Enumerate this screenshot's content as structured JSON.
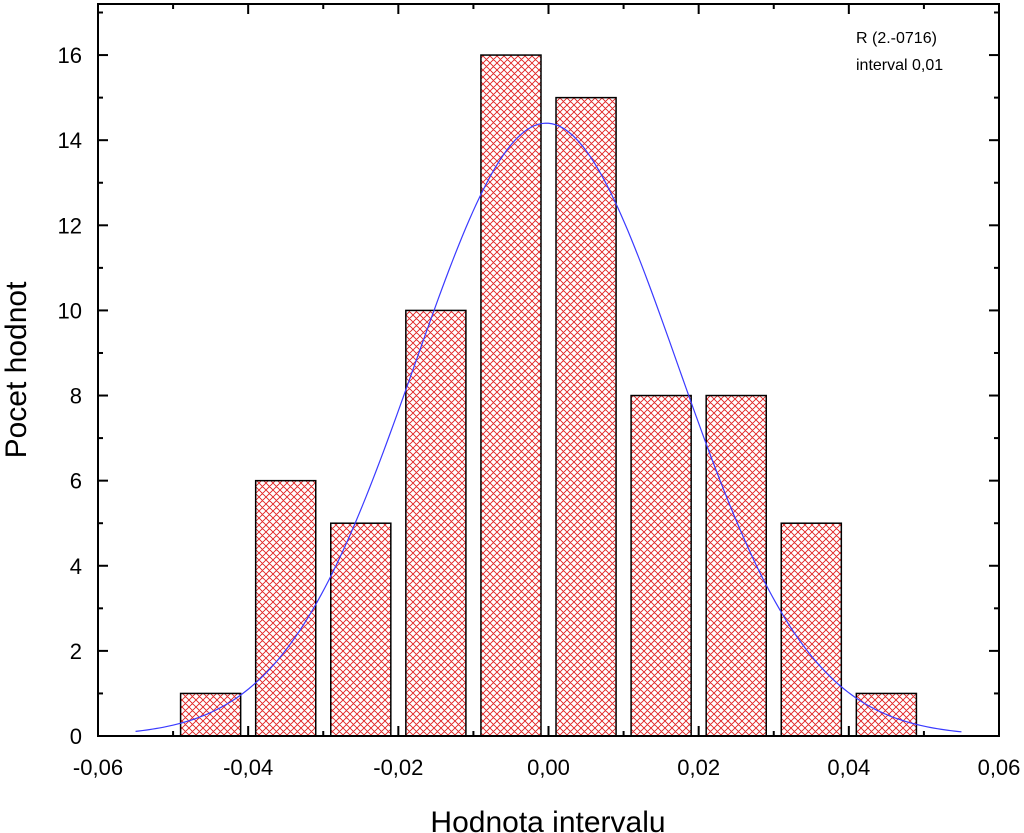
{
  "chart_data": {
    "type": "bar",
    "subtype": "histogram-with-fitted-curve",
    "xlabel": "Hodnota intervalu",
    "ylabel": "Pocet hodnot",
    "xlim": [
      -0.06,
      0.06
    ],
    "ylim": [
      0,
      17.2
    ],
    "x_ticks": [
      -0.06,
      -0.04,
      -0.02,
      0.0,
      0.02,
      0.04,
      0.06
    ],
    "x_tick_labels": [
      "-0,06",
      "-0,04",
      "-0,02",
      "0,00",
      "0,02",
      "0,04",
      "0,06"
    ],
    "y_ticks": [
      0,
      2,
      4,
      6,
      8,
      10,
      12,
      14,
      16
    ],
    "y_tick_labels": [
      "0",
      "2",
      "4",
      "6",
      "8",
      "10",
      "12",
      "14",
      "16"
    ],
    "bin_width": 0.01,
    "bar_width": 0.008,
    "bins": [
      {
        "center": -0.045,
        "count": 1
      },
      {
        "center": -0.035,
        "count": 6
      },
      {
        "center": -0.025,
        "count": 5
      },
      {
        "center": -0.015,
        "count": 10
      },
      {
        "center": -0.005,
        "count": 16
      },
      {
        "center": 0.005,
        "count": 15
      },
      {
        "center": 0.015,
        "count": 8
      },
      {
        "center": 0.025,
        "count": 8
      },
      {
        "center": 0.035,
        "count": 5
      },
      {
        "center": 0.045,
        "count": 1
      }
    ],
    "fit_curve": {
      "type": "gaussian",
      "mean": -0.0003,
      "sigma": 0.0175,
      "peak": 14.4,
      "x_range": [
        -0.055,
        0.055
      ],
      "color": "#3a3aff"
    },
    "annotations": [
      "R (2.-0716)",
      "interval 0,01"
    ],
    "bar_fill_pattern": "crosshatch",
    "bar_pattern_color": "#e02020",
    "grid": false
  }
}
